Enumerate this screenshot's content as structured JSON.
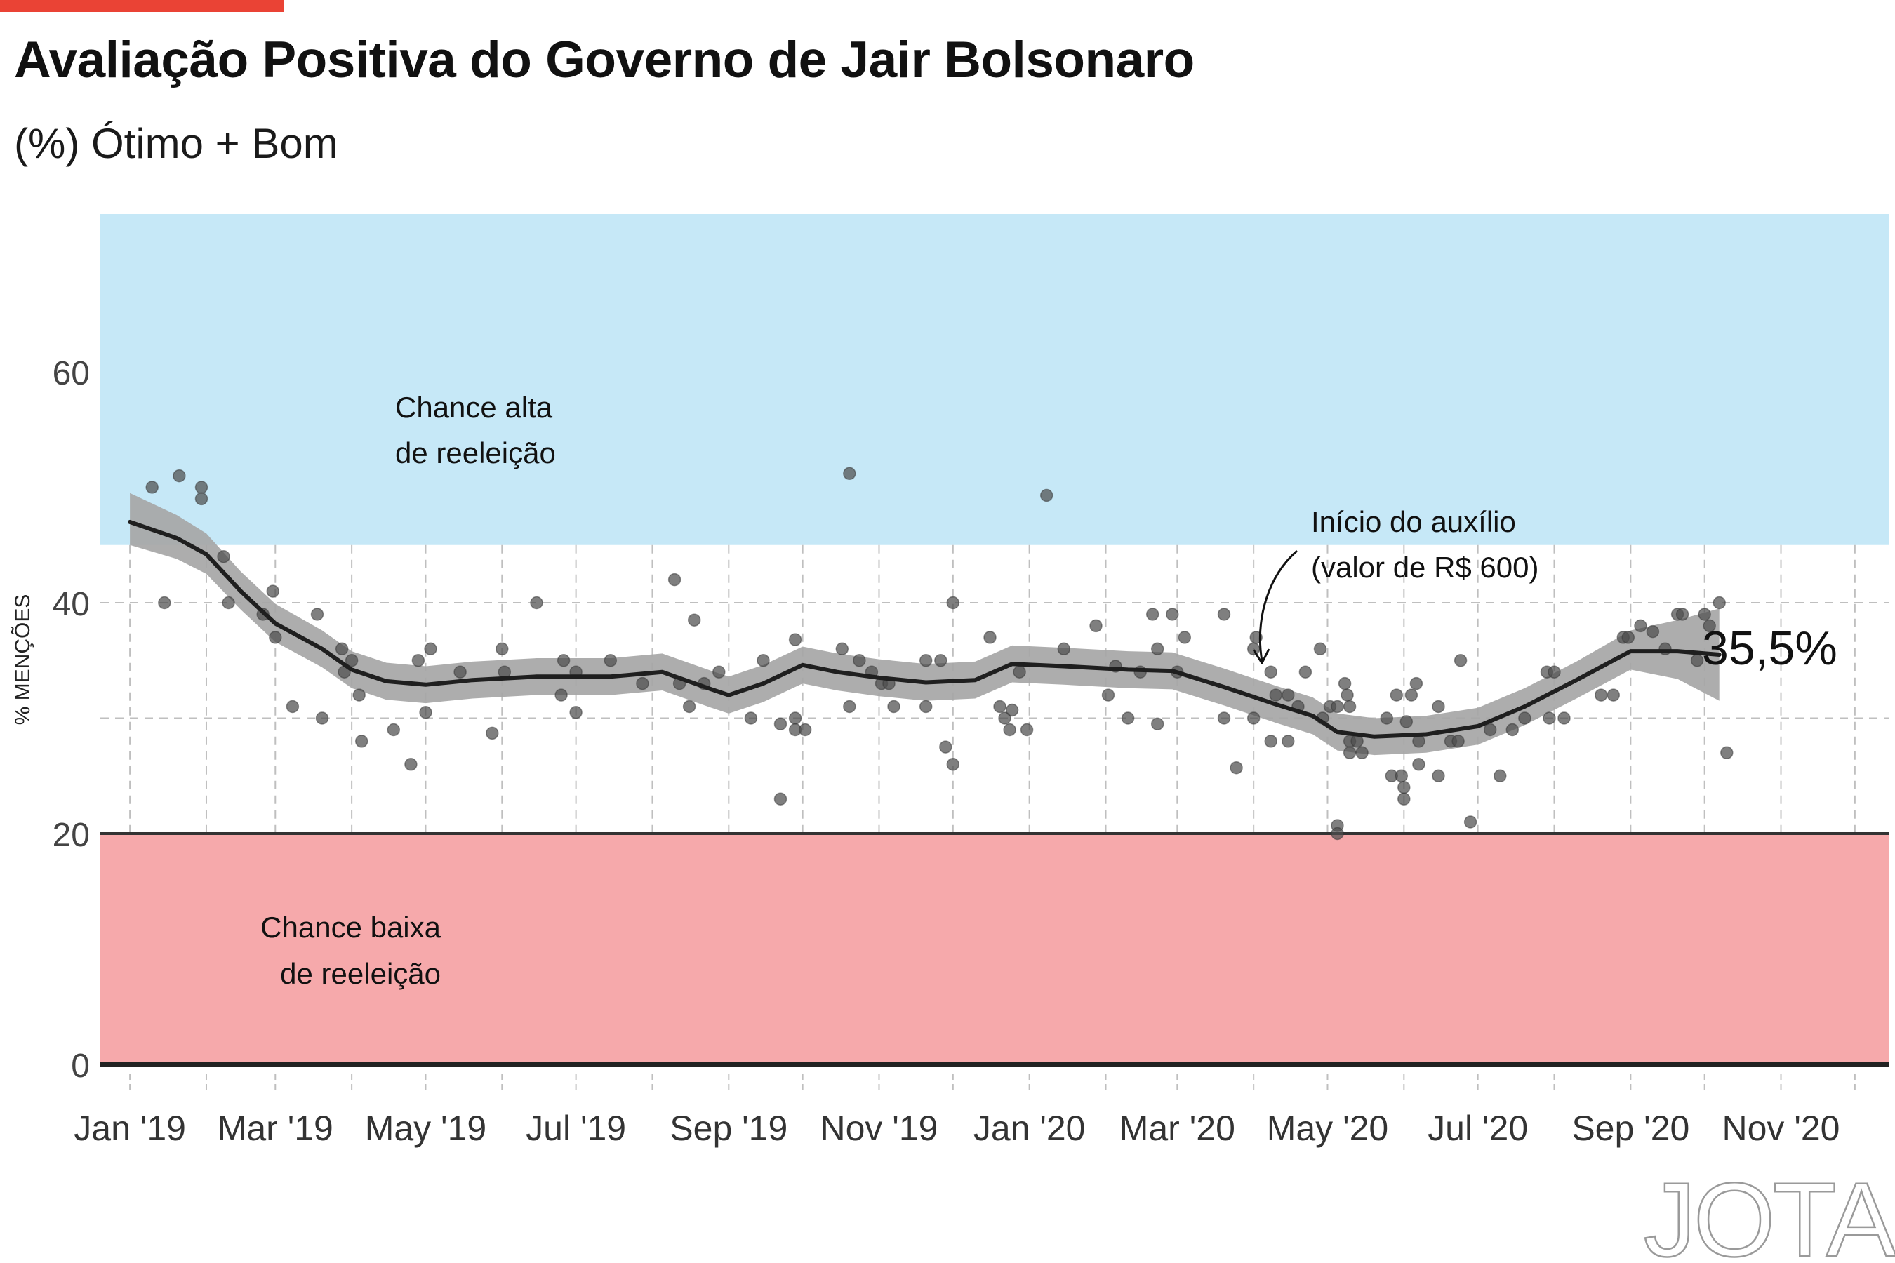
{
  "header": {
    "title": "Avaliação Positiva do Governo de Jair Bolsonaro",
    "subtitle": "(%) Ótimo + Bom"
  },
  "brand": {
    "logo": "JOTA"
  },
  "colors": {
    "accent": "#ea4335",
    "high_zone": "#c6e8f7",
    "low_zone": "#f6a9ab",
    "band": "#a6a6a6",
    "trend": "#1f1f1f",
    "points": "#4d4d4d"
  },
  "chart_data": {
    "type": "scatter",
    "ylabel": "% MENÇÕES",
    "ylim": [
      0,
      73
    ],
    "x_range": [
      "2018-12-20",
      "2020-12-15"
    ],
    "y_ticks": [
      0,
      20,
      40,
      60
    ],
    "y_tick_labels": [
      "0",
      "20",
      "40",
      "60"
    ],
    "x_ticks": [
      {
        "date": "2019-01-01",
        "label": "Jan '19"
      },
      {
        "date": "2019-03-01",
        "label": "Mar '19"
      },
      {
        "date": "2019-05-01",
        "label": "May '19"
      },
      {
        "date": "2019-07-01",
        "label": "Jul '19"
      },
      {
        "date": "2019-09-01",
        "label": "Sep '19"
      },
      {
        "date": "2019-11-01",
        "label": "Nov '19"
      },
      {
        "date": "2020-01-01",
        "label": "Jan '20"
      },
      {
        "date": "2020-03-01",
        "label": "Mar '20"
      },
      {
        "date": "2020-05-01",
        "label": "May '20"
      },
      {
        "date": "2020-07-01",
        "label": "Jul '20"
      },
      {
        "date": "2020-09-01",
        "label": "Sep '20"
      },
      {
        "date": "2020-11-01",
        "label": "Nov '20"
      }
    ],
    "zones": [
      {
        "label": "Chance alta\nde reeleição",
        "from": 45,
        "to": 73
      },
      {
        "label": "Chance baixa\nde reeleição",
        "from": 0,
        "to": 20
      }
    ],
    "trend": [
      {
        "x": "2019-01-01",
        "y": 47.0,
        "lo": 45.0,
        "hi": 49.5
      },
      {
        "x": "2019-01-20",
        "y": 45.6,
        "lo": 43.8,
        "hi": 47.6
      },
      {
        "x": "2019-02-01",
        "y": 44.2,
        "lo": 42.5,
        "hi": 46.0
      },
      {
        "x": "2019-02-15",
        "y": 41.0,
        "lo": 39.4,
        "hi": 42.7
      },
      {
        "x": "2019-03-01",
        "y": 38.2,
        "lo": 36.6,
        "hi": 39.9
      },
      {
        "x": "2019-03-20",
        "y": 36.0,
        "lo": 34.4,
        "hi": 37.6
      },
      {
        "x": "2019-04-01",
        "y": 34.2,
        "lo": 32.6,
        "hi": 35.8
      },
      {
        "x": "2019-04-15",
        "y": 33.2,
        "lo": 31.6,
        "hi": 34.8
      },
      {
        "x": "2019-05-01",
        "y": 32.9,
        "lo": 31.3,
        "hi": 34.5
      },
      {
        "x": "2019-05-20",
        "y": 33.3,
        "lo": 31.7,
        "hi": 34.9
      },
      {
        "x": "2019-06-15",
        "y": 33.6,
        "lo": 32.0,
        "hi": 35.2
      },
      {
        "x": "2019-07-15",
        "y": 33.6,
        "lo": 32.0,
        "hi": 35.2
      },
      {
        "x": "2019-08-05",
        "y": 34.0,
        "lo": 32.4,
        "hi": 35.6
      },
      {
        "x": "2019-08-25",
        "y": 32.5,
        "lo": 30.9,
        "hi": 34.1
      },
      {
        "x": "2019-09-01",
        "y": 32.0,
        "lo": 30.4,
        "hi": 33.6
      },
      {
        "x": "2019-09-15",
        "y": 33.0,
        "lo": 31.4,
        "hi": 34.6
      },
      {
        "x": "2019-10-01",
        "y": 34.6,
        "lo": 33.0,
        "hi": 36.2
      },
      {
        "x": "2019-10-15",
        "y": 34.0,
        "lo": 32.4,
        "hi": 35.6
      },
      {
        "x": "2019-11-01",
        "y": 33.5,
        "lo": 31.9,
        "hi": 35.1
      },
      {
        "x": "2019-11-20",
        "y": 33.1,
        "lo": 31.5,
        "hi": 34.7
      },
      {
        "x": "2019-12-10",
        "y": 33.3,
        "lo": 31.7,
        "hi": 34.9
      },
      {
        "x": "2019-12-25",
        "y": 34.7,
        "lo": 33.1,
        "hi": 36.3
      },
      {
        "x": "2020-01-15",
        "y": 34.5,
        "lo": 32.9,
        "hi": 36.1
      },
      {
        "x": "2020-02-10",
        "y": 34.2,
        "lo": 32.6,
        "hi": 35.8
      },
      {
        "x": "2020-02-28",
        "y": 34.1,
        "lo": 32.5,
        "hi": 35.7
      },
      {
        "x": "2020-03-20",
        "y": 32.7,
        "lo": 31.1,
        "hi": 34.3
      },
      {
        "x": "2020-04-10",
        "y": 31.2,
        "lo": 29.6,
        "hi": 32.8
      },
      {
        "x": "2020-04-25",
        "y": 30.2,
        "lo": 28.6,
        "hi": 31.8
      },
      {
        "x": "2020-05-05",
        "y": 28.8,
        "lo": 27.2,
        "hi": 30.4
      },
      {
        "x": "2020-05-20",
        "y": 28.4,
        "lo": 26.8,
        "hi": 30.0
      },
      {
        "x": "2020-06-10",
        "y": 28.6,
        "lo": 27.0,
        "hi": 30.2
      },
      {
        "x": "2020-07-01",
        "y": 29.3,
        "lo": 27.7,
        "hi": 30.9
      },
      {
        "x": "2020-07-20",
        "y": 31.0,
        "lo": 29.4,
        "hi": 32.6
      },
      {
        "x": "2020-08-10",
        "y": 33.3,
        "lo": 31.7,
        "hi": 34.9
      },
      {
        "x": "2020-09-01",
        "y": 35.8,
        "lo": 34.2,
        "hi": 37.6
      },
      {
        "x": "2020-09-20",
        "y": 35.8,
        "lo": 33.4,
        "hi": 38.5
      },
      {
        "x": "2020-10-07",
        "y": 35.5,
        "lo": 31.5,
        "hi": 39.5
      }
    ],
    "points": [
      {
        "x": "2019-01-10",
        "y": 50
      },
      {
        "x": "2019-01-15",
        "y": 40
      },
      {
        "x": "2019-01-21",
        "y": 51
      },
      {
        "x": "2019-01-30",
        "y": 50
      },
      {
        "x": "2019-01-30",
        "y": 49
      },
      {
        "x": "2019-02-08",
        "y": 44
      },
      {
        "x": "2019-02-10",
        "y": 40
      },
      {
        "x": "2019-02-24",
        "y": 39
      },
      {
        "x": "2019-02-28",
        "y": 41
      },
      {
        "x": "2019-03-01",
        "y": 37
      },
      {
        "x": "2019-03-08",
        "y": 31
      },
      {
        "x": "2019-03-18",
        "y": 39
      },
      {
        "x": "2019-03-20",
        "y": 30
      },
      {
        "x": "2019-03-28",
        "y": 36
      },
      {
        "x": "2019-03-29",
        "y": 34
      },
      {
        "x": "2019-04-01",
        "y": 35
      },
      {
        "x": "2019-04-04",
        "y": 32
      },
      {
        "x": "2019-04-05",
        "y": 28
      },
      {
        "x": "2019-04-18",
        "y": 29
      },
      {
        "x": "2019-04-25",
        "y": 26
      },
      {
        "x": "2019-04-28",
        "y": 35
      },
      {
        "x": "2019-05-01",
        "y": 30.5
      },
      {
        "x": "2019-05-03",
        "y": 36
      },
      {
        "x": "2019-05-15",
        "y": 34
      },
      {
        "x": "2019-05-28",
        "y": 28.7
      },
      {
        "x": "2019-06-01",
        "y": 36
      },
      {
        "x": "2019-06-02",
        "y": 34
      },
      {
        "x": "2019-06-15",
        "y": 40
      },
      {
        "x": "2019-06-25",
        "y": 32
      },
      {
        "x": "2019-06-26",
        "y": 35
      },
      {
        "x": "2019-07-01",
        "y": 34
      },
      {
        "x": "2019-07-01",
        "y": 30.5
      },
      {
        "x": "2019-07-15",
        "y": 35
      },
      {
        "x": "2019-07-28",
        "y": 33
      },
      {
        "x": "2019-08-10",
        "y": 42
      },
      {
        "x": "2019-08-12",
        "y": 33
      },
      {
        "x": "2019-08-16",
        "y": 31
      },
      {
        "x": "2019-08-18",
        "y": 38.5
      },
      {
        "x": "2019-08-22",
        "y": 33
      },
      {
        "x": "2019-08-28",
        "y": 34
      },
      {
        "x": "2019-09-10",
        "y": 30
      },
      {
        "x": "2019-09-15",
        "y": 35
      },
      {
        "x": "2019-09-22",
        "y": 29.5
      },
      {
        "x": "2019-09-22",
        "y": 23
      },
      {
        "x": "2019-09-28",
        "y": 36.8
      },
      {
        "x": "2019-09-28",
        "y": 30
      },
      {
        "x": "2019-09-28",
        "y": 29
      },
      {
        "x": "2019-10-02",
        "y": 29
      },
      {
        "x": "2019-10-17",
        "y": 36
      },
      {
        "x": "2019-10-20",
        "y": 51.2
      },
      {
        "x": "2019-10-20",
        "y": 31
      },
      {
        "x": "2019-10-24",
        "y": 35
      },
      {
        "x": "2019-10-29",
        "y": 34
      },
      {
        "x": "2019-11-02",
        "y": 33
      },
      {
        "x": "2019-11-05",
        "y": 33
      },
      {
        "x": "2019-11-07",
        "y": 31
      },
      {
        "x": "2019-11-20",
        "y": 35
      },
      {
        "x": "2019-11-20",
        "y": 31
      },
      {
        "x": "2019-11-26",
        "y": 35
      },
      {
        "x": "2019-11-28",
        "y": 27.5
      },
      {
        "x": "2019-12-01",
        "y": 40
      },
      {
        "x": "2019-12-01",
        "y": 26
      },
      {
        "x": "2019-12-16",
        "y": 37
      },
      {
        "x": "2019-12-20",
        "y": 31
      },
      {
        "x": "2019-12-22",
        "y": 30
      },
      {
        "x": "2019-12-24",
        "y": 29
      },
      {
        "x": "2019-12-25",
        "y": 30.7
      },
      {
        "x": "2019-12-28",
        "y": 34
      },
      {
        "x": "2019-12-31",
        "y": 29
      },
      {
        "x": "2020-01-08",
        "y": 49.3
      },
      {
        "x": "2020-01-15",
        "y": 36
      },
      {
        "x": "2020-01-28",
        "y": 38
      },
      {
        "x": "2020-02-02",
        "y": 32
      },
      {
        "x": "2020-02-05",
        "y": 34.5
      },
      {
        "x": "2020-02-10",
        "y": 30
      },
      {
        "x": "2020-02-15",
        "y": 34
      },
      {
        "x": "2020-02-20",
        "y": 39
      },
      {
        "x": "2020-02-22",
        "y": 29.5
      },
      {
        "x": "2020-02-22",
        "y": 36
      },
      {
        "x": "2020-02-28",
        "y": 39
      },
      {
        "x": "2020-03-01",
        "y": 34
      },
      {
        "x": "2020-03-04",
        "y": 37
      },
      {
        "x": "2020-03-20",
        "y": 30
      },
      {
        "x": "2020-03-20",
        "y": 39
      },
      {
        "x": "2020-03-25",
        "y": 25.7
      },
      {
        "x": "2020-04-01",
        "y": 30
      },
      {
        "x": "2020-04-01",
        "y": 36
      },
      {
        "x": "2020-04-02",
        "y": 37
      },
      {
        "x": "2020-04-08",
        "y": 34
      },
      {
        "x": "2020-04-08",
        "y": 28
      },
      {
        "x": "2020-04-10",
        "y": 32
      },
      {
        "x": "2020-04-15",
        "y": 32
      },
      {
        "x": "2020-04-15",
        "y": 28
      },
      {
        "x": "2020-04-19",
        "y": 31
      },
      {
        "x": "2020-04-22",
        "y": 34
      },
      {
        "x": "2020-04-28",
        "y": 36
      },
      {
        "x": "2020-04-29",
        "y": 30
      },
      {
        "x": "2020-05-02",
        "y": 31
      },
      {
        "x": "2020-05-05",
        "y": 31
      },
      {
        "x": "2020-05-05",
        "y": 20.7
      },
      {
        "x": "2020-05-05",
        "y": 20
      },
      {
        "x": "2020-05-08",
        "y": 33
      },
      {
        "x": "2020-05-09",
        "y": 32
      },
      {
        "x": "2020-05-10",
        "y": 31
      },
      {
        "x": "2020-05-10",
        "y": 28
      },
      {
        "x": "2020-05-10",
        "y": 27
      },
      {
        "x": "2020-05-13",
        "y": 28
      },
      {
        "x": "2020-05-15",
        "y": 27
      },
      {
        "x": "2020-05-25",
        "y": 30
      },
      {
        "x": "2020-05-27",
        "y": 25
      },
      {
        "x": "2020-05-29",
        "y": 32
      },
      {
        "x": "2020-05-31",
        "y": 25
      },
      {
        "x": "2020-06-01",
        "y": 24
      },
      {
        "x": "2020-06-01",
        "y": 23
      },
      {
        "x": "2020-06-02",
        "y": 29.7
      },
      {
        "x": "2020-06-04",
        "y": 32
      },
      {
        "x": "2020-06-06",
        "y": 33
      },
      {
        "x": "2020-06-07",
        "y": 26
      },
      {
        "x": "2020-06-07",
        "y": 28
      },
      {
        "x": "2020-06-15",
        "y": 31
      },
      {
        "x": "2020-06-15",
        "y": 25
      },
      {
        "x": "2020-06-20",
        "y": 28
      },
      {
        "x": "2020-06-23",
        "y": 28
      },
      {
        "x": "2020-06-24",
        "y": 35
      },
      {
        "x": "2020-06-28",
        "y": 21
      },
      {
        "x": "2020-07-06",
        "y": 29
      },
      {
        "x": "2020-07-10",
        "y": 25
      },
      {
        "x": "2020-07-15",
        "y": 29
      },
      {
        "x": "2020-07-20",
        "y": 30
      },
      {
        "x": "2020-07-29",
        "y": 34
      },
      {
        "x": "2020-07-30",
        "y": 30
      },
      {
        "x": "2020-08-01",
        "y": 34
      },
      {
        "x": "2020-08-05",
        "y": 30
      },
      {
        "x": "2020-08-20",
        "y": 32
      },
      {
        "x": "2020-08-25",
        "y": 32
      },
      {
        "x": "2020-08-29",
        "y": 37
      },
      {
        "x": "2020-08-31",
        "y": 37
      },
      {
        "x": "2020-09-05",
        "y": 38
      },
      {
        "x": "2020-09-10",
        "y": 37.5
      },
      {
        "x": "2020-09-15",
        "y": 36
      },
      {
        "x": "2020-09-20",
        "y": 39
      },
      {
        "x": "2020-09-22",
        "y": 39
      },
      {
        "x": "2020-09-28",
        "y": 35
      },
      {
        "x": "2020-10-01",
        "y": 39
      },
      {
        "x": "2020-10-03",
        "y": 38
      },
      {
        "x": "2020-10-07",
        "y": 40
      },
      {
        "x": "2020-10-10",
        "y": 27
      }
    ],
    "annotations": [
      {
        "text": "Início do auxílio\n(valor de R$ 600)",
        "x": "2020-04-08",
        "y": 34
      },
      {
        "text": "35,5%",
        "x": "2020-10-09",
        "y": 35.5
      }
    ]
  }
}
